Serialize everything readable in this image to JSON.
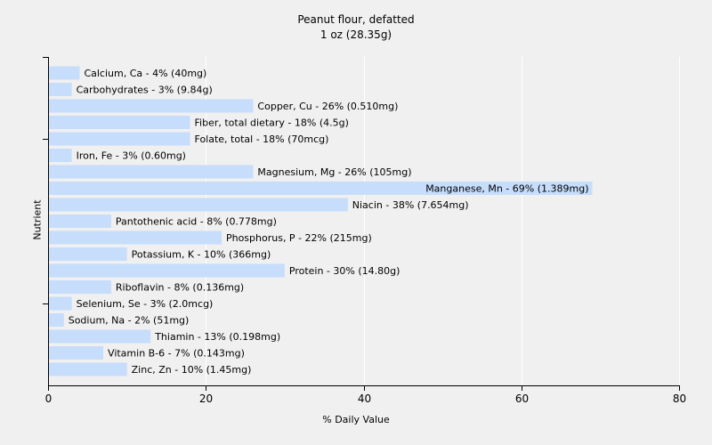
{
  "chart_data": {
    "type": "bar",
    "orientation": "horizontal",
    "title": "Peanut flour, defatted",
    "subtitle": "1 oz (28.35g)",
    "xlabel": "% Daily Value",
    "ylabel": "Nutrient",
    "xlim": [
      0,
      80
    ],
    "xticks": [
      "0",
      "20",
      "40",
      "60",
      "80"
    ],
    "grid": "vertical",
    "bar_color": "#c6ddfb",
    "categories": [
      "Calcium, Ca",
      "Carbohydrates",
      "Copper, Cu",
      "Fiber, total dietary",
      "Folate, total",
      "Iron, Fe",
      "Magnesium, Mg",
      "Manganese, Mn",
      "Niacin",
      "Pantothenic acid",
      "Phosphorus, P",
      "Potassium, K",
      "Protein",
      "Riboflavin",
      "Selenium, Se",
      "Sodium, Na",
      "Thiamin",
      "Vitamin B-6",
      "Zinc, Zn"
    ],
    "values": [
      4,
      3,
      26,
      18,
      18,
      3,
      26,
      69,
      38,
      8,
      22,
      10,
      30,
      8,
      3,
      2,
      13,
      7,
      10
    ],
    "labels": [
      "Calcium, Ca - 4% (40mg)",
      "Carbohydrates - 3% (9.84g)",
      "Copper, Cu - 26% (0.510mg)",
      "Fiber, total dietary - 18% (4.5g)",
      "Folate, total - 18% (70mcg)",
      "Iron, Fe - 3% (0.60mg)",
      "Magnesium, Mg - 26% (105mg)",
      "Manganese, Mn - 69% (1.389mg)",
      "Niacin - 38% (7.654mg)",
      "Pantothenic acid - 8% (0.778mg)",
      "Phosphorus, P - 22% (215mg)",
      "Potassium, K - 10% (366mg)",
      "Protein - 30% (14.80g)",
      "Riboflavin - 8% (0.136mg)",
      "Selenium, Se - 3% (2.0mcg)",
      "Sodium, Na - 2% (51mg)",
      "Thiamin - 13% (0.198mg)",
      "Vitamin B-6 - 7% (0.143mg)",
      "Zinc, Zn - 10% (1.45mg)"
    ]
  }
}
